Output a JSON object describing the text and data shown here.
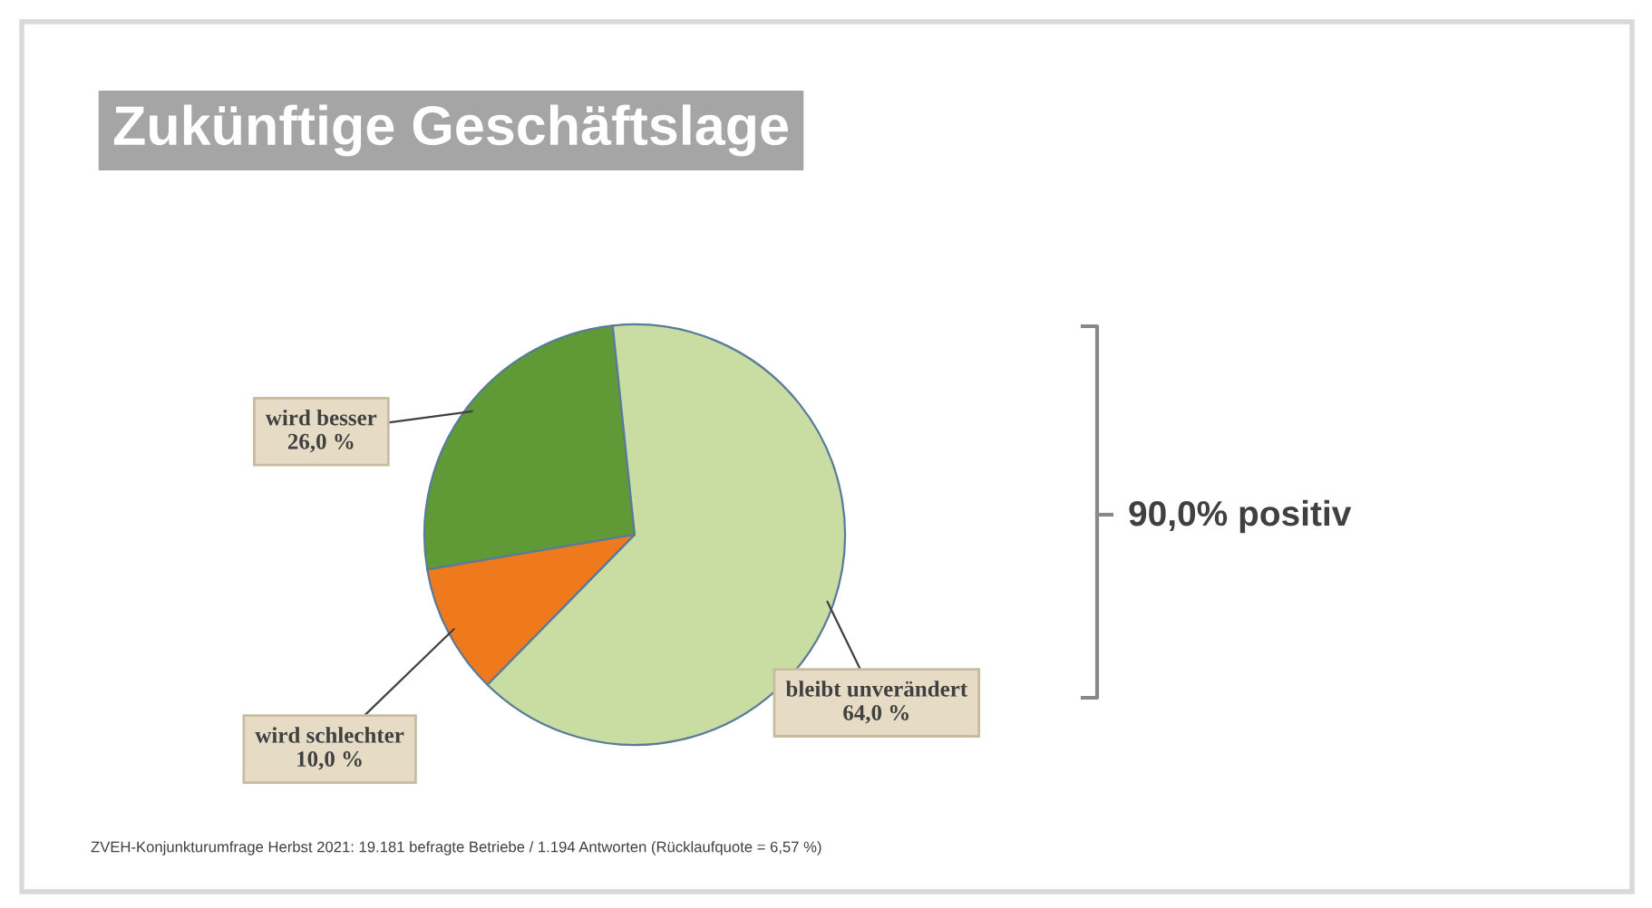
{
  "chart_data": {
    "type": "pie",
    "title": "Zukünftige Geschäftslage",
    "categories": [
      "wird besser",
      "wird schlechter",
      "bleibt unverändert"
    ],
    "values": [
      26.0,
      10.0,
      64.0
    ],
    "colors": [
      "#5f9a36",
      "#ef7a1e",
      "#c9dda3"
    ],
    "value_labels": [
      "26,0 %",
      "10,0 %",
      "64,0 %"
    ],
    "legend": false,
    "annotations": [
      "90,0% positiv",
      "ZVEH-Konjunkturumfrage Herbst 2021: 19.181 befragte Betriebe / 1.194 Antworten (Rücklaufquote = 6,57 %)"
    ]
  }
}
